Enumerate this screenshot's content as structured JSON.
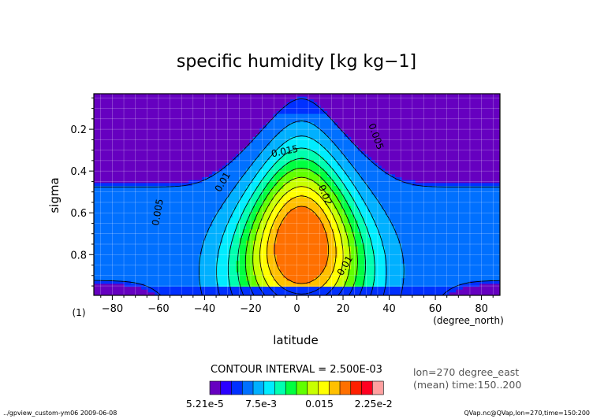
{
  "chart_data": {
    "type": "heatmap",
    "title": "specific humidity [kg kg−1]",
    "xlabel": "latitude",
    "x_unit_label": "(degree_north)",
    "ylabel": "sigma",
    "y_unit_label": "(1)",
    "xlim": [
      -88,
      88
    ],
    "ylim": [
      0.03,
      0.995
    ],
    "y_inverted": true,
    "x_ticks": [
      -80,
      -60,
      -40,
      -20,
      0,
      20,
      40,
      60,
      80
    ],
    "y_ticks": [
      0.2,
      0.4,
      0.6,
      0.8
    ],
    "grid": true,
    "contour_interval_text": "CONTOUR INTERVAL = 2.500E-03",
    "info_line1": "lon=270 degree_east",
    "info_line2": "(mean) time:150..200",
    "colorbar_labels": [
      "5.21e-5",
      "7.5e-3",
      "0.015",
      "2.25e-2"
    ],
    "colorbar_colors": [
      "#6600c0",
      "#2a00ff",
      "#0030ff",
      "#0070ff",
      "#00b0ff",
      "#00ecff",
      "#00ffb0",
      "#00ff40",
      "#60ff00",
      "#c8ff00",
      "#ffff00",
      "#ffc000",
      "#ff7000",
      "#ff2000",
      "#ff0020",
      "#ffa0a0"
    ],
    "levels": [
      0.0025,
      0.005,
      0.0075,
      0.01,
      0.0125,
      0.015,
      0.0175,
      0.02,
      0.0225,
      0.025
    ],
    "field_model": {
      "peak_value": 0.0266,
      "peak_latitude": 2,
      "peak_sigma": 0.76,
      "latitude_halfwidth": 21,
      "sigma_scale": 0.42,
      "background_value": 0.0032
    },
    "contour_labels": [
      {
        "text": "0.005",
        "lat": -59,
        "sigma": 0.6,
        "rotate": -80
      },
      {
        "text": "0.01",
        "lat": -31,
        "sigma": 0.46,
        "rotate": -60
      },
      {
        "text": "0.015",
        "lat": -5,
        "sigma": 0.32,
        "rotate": -12
      },
      {
        "text": "0.02",
        "lat": 11,
        "sigma": 0.52,
        "rotate": 68
      },
      {
        "text": "0.005",
        "lat": 33,
        "sigma": 0.24,
        "rotate": 70
      },
      {
        "text": "0.01",
        "lat": 22,
        "sigma": 0.86,
        "rotate": -60
      }
    ]
  },
  "footer": {
    "left": "../gpview_custom-ym06  2009-06-08",
    "right": "QVap.nc@QVap,lon=270,time=150:200"
  }
}
